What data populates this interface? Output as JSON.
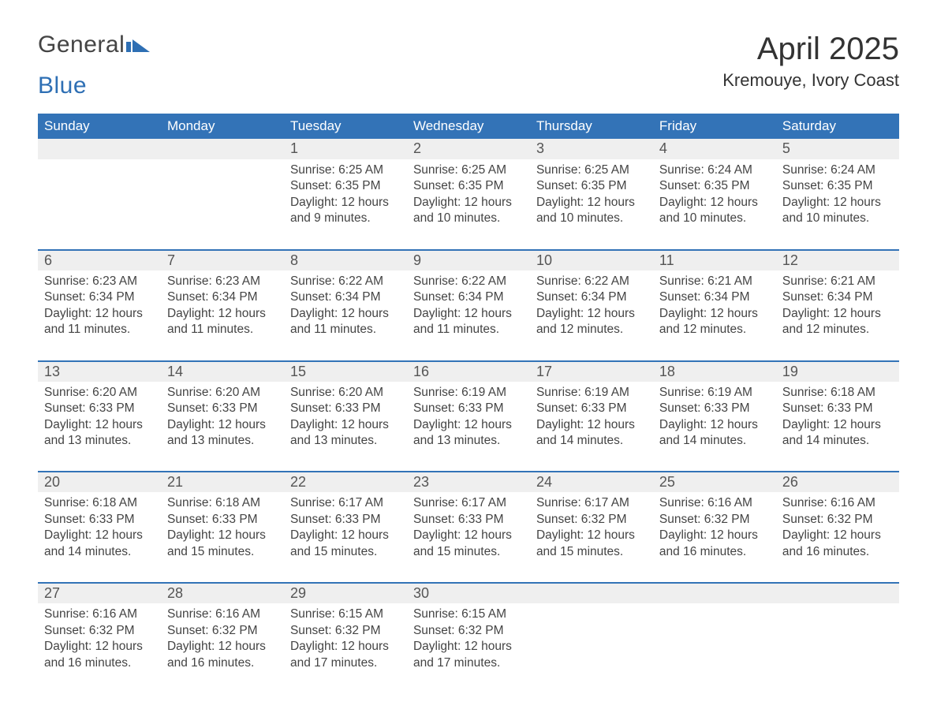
{
  "brand": {
    "text1": "General",
    "text2": "Blue",
    "icon_color": "#2e6fb4"
  },
  "title": "April 2025",
  "subtitle": "Kremouye, Ivory Coast",
  "colors": {
    "header_bg": "#3373b7",
    "header_text": "#ffffff",
    "daynum_bg": "#efefef",
    "row_border": "#3373b7",
    "body_text": "#444444",
    "page_bg": "#ffffff"
  },
  "typography": {
    "title_fontsize": 40,
    "subtitle_fontsize": 22,
    "dayhead_fontsize": 17,
    "daynum_fontsize": 18,
    "detail_fontsize": 15.5,
    "font_family": "Arial"
  },
  "day_names": [
    "Sunday",
    "Monday",
    "Tuesday",
    "Wednesday",
    "Thursday",
    "Friday",
    "Saturday"
  ],
  "weeks": [
    [
      null,
      null,
      {
        "n": "1",
        "sunrise": "6:25 AM",
        "sunset": "6:35 PM",
        "daylight": "12 hours and 9 minutes."
      },
      {
        "n": "2",
        "sunrise": "6:25 AM",
        "sunset": "6:35 PM",
        "daylight": "12 hours and 10 minutes."
      },
      {
        "n": "3",
        "sunrise": "6:25 AM",
        "sunset": "6:35 PM",
        "daylight": "12 hours and 10 minutes."
      },
      {
        "n": "4",
        "sunrise": "6:24 AM",
        "sunset": "6:35 PM",
        "daylight": "12 hours and 10 minutes."
      },
      {
        "n": "5",
        "sunrise": "6:24 AM",
        "sunset": "6:35 PM",
        "daylight": "12 hours and 10 minutes."
      }
    ],
    [
      {
        "n": "6",
        "sunrise": "6:23 AM",
        "sunset": "6:34 PM",
        "daylight": "12 hours and 11 minutes."
      },
      {
        "n": "7",
        "sunrise": "6:23 AM",
        "sunset": "6:34 PM",
        "daylight": "12 hours and 11 minutes."
      },
      {
        "n": "8",
        "sunrise": "6:22 AM",
        "sunset": "6:34 PM",
        "daylight": "12 hours and 11 minutes."
      },
      {
        "n": "9",
        "sunrise": "6:22 AM",
        "sunset": "6:34 PM",
        "daylight": "12 hours and 11 minutes."
      },
      {
        "n": "10",
        "sunrise": "6:22 AM",
        "sunset": "6:34 PM",
        "daylight": "12 hours and 12 minutes."
      },
      {
        "n": "11",
        "sunrise": "6:21 AM",
        "sunset": "6:34 PM",
        "daylight": "12 hours and 12 minutes."
      },
      {
        "n": "12",
        "sunrise": "6:21 AM",
        "sunset": "6:34 PM",
        "daylight": "12 hours and 12 minutes."
      }
    ],
    [
      {
        "n": "13",
        "sunrise": "6:20 AM",
        "sunset": "6:33 PM",
        "daylight": "12 hours and 13 minutes."
      },
      {
        "n": "14",
        "sunrise": "6:20 AM",
        "sunset": "6:33 PM",
        "daylight": "12 hours and 13 minutes."
      },
      {
        "n": "15",
        "sunrise": "6:20 AM",
        "sunset": "6:33 PM",
        "daylight": "12 hours and 13 minutes."
      },
      {
        "n": "16",
        "sunrise": "6:19 AM",
        "sunset": "6:33 PM",
        "daylight": "12 hours and 13 minutes."
      },
      {
        "n": "17",
        "sunrise": "6:19 AM",
        "sunset": "6:33 PM",
        "daylight": "12 hours and 14 minutes."
      },
      {
        "n": "18",
        "sunrise": "6:19 AM",
        "sunset": "6:33 PM",
        "daylight": "12 hours and 14 minutes."
      },
      {
        "n": "19",
        "sunrise": "6:18 AM",
        "sunset": "6:33 PM",
        "daylight": "12 hours and 14 minutes."
      }
    ],
    [
      {
        "n": "20",
        "sunrise": "6:18 AM",
        "sunset": "6:33 PM",
        "daylight": "12 hours and 14 minutes."
      },
      {
        "n": "21",
        "sunrise": "6:18 AM",
        "sunset": "6:33 PM",
        "daylight": "12 hours and 15 minutes."
      },
      {
        "n": "22",
        "sunrise": "6:17 AM",
        "sunset": "6:33 PM",
        "daylight": "12 hours and 15 minutes."
      },
      {
        "n": "23",
        "sunrise": "6:17 AM",
        "sunset": "6:33 PM",
        "daylight": "12 hours and 15 minutes."
      },
      {
        "n": "24",
        "sunrise": "6:17 AM",
        "sunset": "6:32 PM",
        "daylight": "12 hours and 15 minutes."
      },
      {
        "n": "25",
        "sunrise": "6:16 AM",
        "sunset": "6:32 PM",
        "daylight": "12 hours and 16 minutes."
      },
      {
        "n": "26",
        "sunrise": "6:16 AM",
        "sunset": "6:32 PM",
        "daylight": "12 hours and 16 minutes."
      }
    ],
    [
      {
        "n": "27",
        "sunrise": "6:16 AM",
        "sunset": "6:32 PM",
        "daylight": "12 hours and 16 minutes."
      },
      {
        "n": "28",
        "sunrise": "6:16 AM",
        "sunset": "6:32 PM",
        "daylight": "12 hours and 16 minutes."
      },
      {
        "n": "29",
        "sunrise": "6:15 AM",
        "sunset": "6:32 PM",
        "daylight": "12 hours and 17 minutes."
      },
      {
        "n": "30",
        "sunrise": "6:15 AM",
        "sunset": "6:32 PM",
        "daylight": "12 hours and 17 minutes."
      },
      null,
      null,
      null
    ]
  ],
  "labels": {
    "sunrise": "Sunrise: ",
    "sunset": "Sunset: ",
    "daylight": "Daylight: "
  }
}
